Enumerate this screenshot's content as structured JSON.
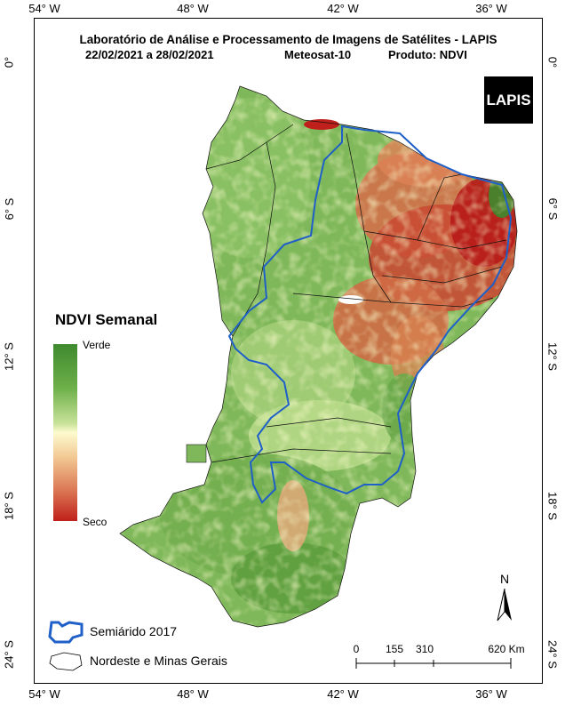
{
  "map": {
    "title": "Laboratório de Análise e Processamento de Imagens de Satélites - LAPIS",
    "date_range": "22/02/2021  a  28/02/2021",
    "satellite": "Meteosat-10",
    "product": "Produto: NDVI",
    "logo_text": "LAPIS",
    "x_ticks": [
      "54° W",
      "48° W",
      "42° W",
      "36° W"
    ],
    "y_ticks": [
      "0°",
      "6° S",
      "12° S",
      "18° S",
      "24° S"
    ]
  },
  "legend": {
    "title": "NDVI Semanal",
    "high_label": "Verde",
    "low_label": "Seco",
    "colors": [
      "#3e8a2e",
      "#fdfbcf",
      "#c0201b"
    ],
    "semiarid_label": "Semiárido 2017",
    "region_label": "Nordeste e Minas Gerais",
    "semiarid_color": "#1f5fc8"
  },
  "scale": {
    "labels": [
      "0",
      "155",
      "310",
      "620 Km"
    ]
  },
  "north": {
    "label": "N"
  }
}
